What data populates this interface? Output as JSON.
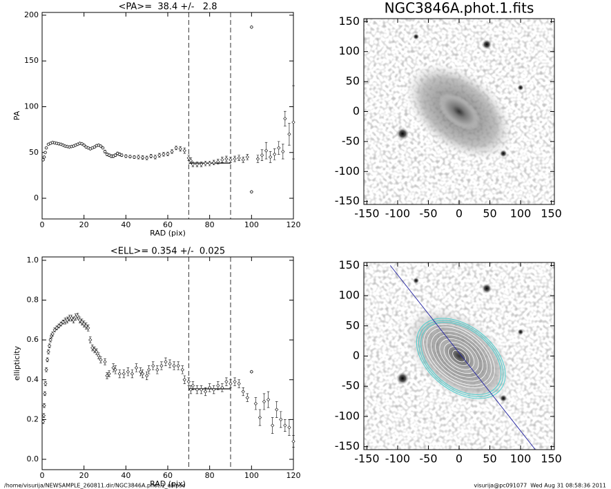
{
  "chart_data": [
    {
      "type": "scatter",
      "title": "<PA>=  38.4 +/-   2.8",
      "x_label": "RAD (pix)",
      "y_label": "PA",
      "x": [
        0.5,
        1,
        1.5,
        2,
        3,
        4,
        5,
        6,
        7,
        8,
        9,
        10,
        11,
        12,
        13,
        14,
        15,
        16,
        17,
        18,
        19,
        20,
        21,
        22,
        23,
        24,
        25,
        26,
        27,
        28,
        29,
        30,
        31,
        32,
        33,
        34,
        35,
        36,
        37,
        38,
        40,
        42,
        44,
        46,
        48,
        50,
        52,
        54,
        56,
        58,
        60,
        62,
        64,
        66,
        68,
        70,
        71,
        72,
        74,
        76,
        78,
        80,
        82,
        84,
        86,
        88,
        90,
        92,
        94,
        96,
        98,
        100,
        100,
        103,
        105,
        107,
        109,
        111,
        113,
        115,
        116,
        118,
        120
      ],
      "values": [
        42,
        45,
        50,
        55,
        59,
        60,
        61,
        60.5,
        60,
        59.5,
        59,
        58,
        57,
        56.5,
        56,
        56.5,
        57,
        58,
        59,
        60,
        59.5,
        58,
        56,
        55,
        54,
        55,
        56,
        57.5,
        58,
        57,
        55,
        51,
        48,
        47,
        46,
        46,
        47,
        49,
        48,
        47,
        46,
        45.5,
        45,
        45,
        44.5,
        44,
        46,
        45,
        47,
        48,
        48.5,
        51,
        55,
        54,
        52,
        44,
        41,
        37,
        37,
        37,
        38,
        38,
        39,
        40,
        42,
        43,
        42,
        43,
        44,
        42,
        45,
        7,
        187,
        43,
        47,
        52,
        45,
        48,
        55,
        51,
        87,
        70,
        83
      ],
      "errors": [
        1,
        1,
        1,
        1,
        1,
        1,
        1,
        1,
        1,
        1,
        1,
        1,
        1,
        1,
        1,
        1,
        1,
        1,
        1,
        1,
        1,
        1,
        1,
        1,
        1,
        1,
        1,
        1,
        1,
        1,
        1,
        1.5,
        1.5,
        1.5,
        1.5,
        1.5,
        1.5,
        1.5,
        1.5,
        1.5,
        1.5,
        1.5,
        1.5,
        2,
        2,
        2,
        2,
        2,
        2,
        2,
        2,
        2,
        2,
        2.5,
        3,
        3,
        3,
        2.5,
        2.5,
        2.5,
        2.5,
        2.5,
        2.5,
        2.5,
        3,
        3,
        3,
        3,
        3,
        3,
        3,
        1,
        1,
        4,
        6,
        9,
        6,
        6,
        7,
        8,
        8,
        12,
        40
      ],
      "xlim": [
        0,
        120
      ],
      "xticks": [
        0,
        20,
        40,
        60,
        80,
        100,
        120
      ],
      "ylim": [
        -22.6,
        203
      ],
      "yticks": [
        0,
        50,
        100,
        150,
        200
      ],
      "vlines": [
        70,
        90
      ],
      "fit_line": {
        "x": [
          70,
          90
        ],
        "y": 38.4
      }
    },
    {
      "type": "image",
      "title": "NGC3846A.phot.1.fits",
      "xlim": [
        -155,
        155
      ],
      "xticks": [
        -150,
        -100,
        -50,
        0,
        50,
        100,
        150
      ],
      "ylim": [
        -155,
        155
      ],
      "yticks": [
        -150,
        -100,
        -50,
        0,
        50,
        100,
        150
      ]
    },
    {
      "type": "scatter",
      "title": "<ELL>= 0.354 +/-  0.025",
      "x_label": "RAD (pix)",
      "y_label": "ellipticity",
      "x": [
        0.5,
        0.8,
        1,
        1.3,
        1.6,
        2,
        2.5,
        3,
        3.5,
        4,
        4.5,
        5,
        6,
        7,
        8,
        9,
        10,
        11,
        12,
        13,
        14,
        15,
        16,
        17,
        18,
        19,
        20,
        21,
        22,
        23,
        24,
        25,
        26,
        27,
        28,
        30,
        31,
        32,
        34,
        35,
        37,
        39,
        41,
        43,
        45,
        47,
        48,
        50,
        51,
        53,
        55,
        57,
        59,
        61,
        63,
        65,
        67,
        68,
        70,
        71,
        72,
        74,
        76,
        78,
        80,
        82,
        84,
        86,
        88,
        90,
        92,
        94,
        96,
        98,
        100,
        102,
        104,
        106,
        108,
        110,
        112,
        114,
        116,
        118,
        120
      ],
      "values": [
        0.19,
        0.22,
        0.27,
        0.33,
        0.38,
        0.45,
        0.5,
        0.54,
        0.57,
        0.6,
        0.62,
        0.63,
        0.65,
        0.66,
        0.67,
        0.68,
        0.69,
        0.695,
        0.7,
        0.71,
        0.71,
        0.7,
        0.715,
        0.72,
        0.7,
        0.69,
        0.68,
        0.67,
        0.66,
        0.6,
        0.56,
        0.55,
        0.54,
        0.52,
        0.5,
        0.49,
        0.42,
        0.43,
        0.46,
        0.45,
        0.43,
        0.43,
        0.44,
        0.43,
        0.46,
        0.44,
        0.43,
        0.42,
        0.45,
        0.47,
        0.45,
        0.47,
        0.49,
        0.48,
        0.47,
        0.47,
        0.45,
        0.4,
        0.39,
        0.35,
        0.37,
        0.35,
        0.35,
        0.34,
        0.36,
        0.35,
        0.37,
        0.36,
        0.39,
        0.38,
        0.39,
        0.38,
        0.34,
        0.31,
        0.44,
        0.28,
        0.21,
        0.29,
        0.3,
        0.17,
        0.25,
        0.2,
        0.17,
        0.16,
        0.09
      ],
      "errors": [
        0.01,
        0.01,
        0.01,
        0.01,
        0.01,
        0.01,
        0.01,
        0.01,
        0.01,
        0.01,
        0.01,
        0.01,
        0.01,
        0.01,
        0.01,
        0.01,
        0.01,
        0.015,
        0.015,
        0.015,
        0.015,
        0.015,
        0.015,
        0.015,
        0.015,
        0.015,
        0.015,
        0.015,
        0.015,
        0.015,
        0.015,
        0.015,
        0.015,
        0.015,
        0.015,
        0.015,
        0.015,
        0.015,
        0.02,
        0.02,
        0.02,
        0.02,
        0.02,
        0.02,
        0.02,
        0.02,
        0.02,
        0.02,
        0.02,
        0.02,
        0.02,
        0.02,
        0.02,
        0.02,
        0.02,
        0.02,
        0.02,
        0.02,
        0.02,
        0.02,
        0.02,
        0.02,
        0.02,
        0.02,
        0.02,
        0.02,
        0.02,
        0.02,
        0.02,
        0.02,
        0.02,
        0.02,
        0.02,
        0.02,
        0.005,
        0.03,
        0.04,
        0.04,
        0.04,
        0.04,
        0.04,
        0.04,
        0.03,
        0.04,
        0.03
      ],
      "xlim": [
        0,
        120
      ],
      "xticks": [
        0,
        20,
        40,
        60,
        80,
        100,
        120
      ],
      "ylim": [
        -0.052,
        1.017
      ],
      "yticks": [
        {
          "value": 0,
          "label": "0.0"
        },
        0.2,
        0.4,
        0.6,
        0.8,
        {
          "value": 1,
          "label": "1.0"
        }
      ],
      "vlines": [
        70,
        90
      ],
      "fit_line": {
        "x": [
          70,
          90
        ],
        "y": 0.354
      }
    },
    {
      "type": "image",
      "xlim": [
        -155,
        155
      ],
      "xticks": [
        -150,
        -100,
        -50,
        0,
        50,
        100,
        150
      ],
      "ylim": [
        -155,
        155
      ],
      "yticks": [
        -150,
        -100,
        -50,
        0,
        50,
        100,
        150
      ]
    }
  ],
  "footer": {
    "left": "/home/visurija/NEWSAMPLE_260811.dir/NGC3846A.phot.1_ellipse",
    "right": "visurija@pc091077  Wed Aug 31 08:58:36 2011"
  }
}
